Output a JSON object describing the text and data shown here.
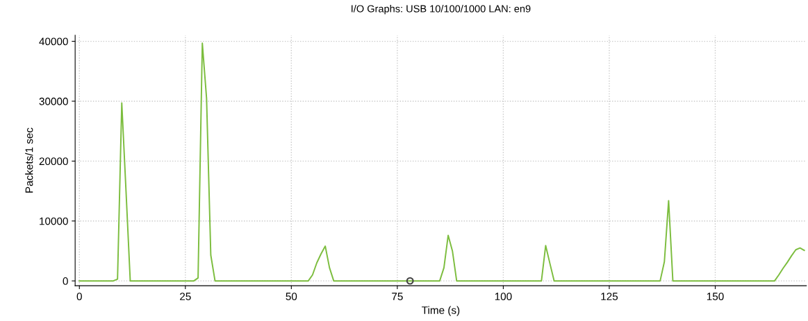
{
  "chart_data": {
    "type": "line",
    "title": "I/O Graphs: USB 10/100/1000 LAN: en9",
    "xlabel": "Time (s)",
    "ylabel": "Packets/1 sec",
    "xlim": [
      -1,
      171.5
    ],
    "ylim": [
      -800,
      41000
    ],
    "xticks": [
      0,
      25,
      50,
      75,
      100,
      125,
      150
    ],
    "yticks": [
      0,
      10000,
      20000,
      30000,
      40000
    ],
    "grid": true,
    "marker": "none",
    "line_style": "solid",
    "series": [
      {
        "color": "#7cbd3e",
        "x": [
          0,
          8,
          9,
          10,
          11,
          12,
          27,
          28,
          29,
          30,
          31,
          32,
          54,
          55,
          56,
          57,
          58,
          59,
          60,
          85,
          86,
          87,
          88,
          89,
          109,
          110,
          111,
          112,
          137,
          138,
          139,
          140,
          164,
          165,
          166,
          167,
          168,
          169,
          170,
          171
        ],
        "values": [
          0,
          0,
          300,
          29700,
          15000,
          0,
          0,
          500,
          39700,
          30500,
          4300,
          0,
          0,
          1000,
          3000,
          4500,
          5800,
          2200,
          0,
          0,
          2200,
          7600,
          5000,
          0,
          0,
          5900,
          2900,
          0,
          0,
          3200,
          13400,
          0,
          0,
          1000,
          2100,
          3100,
          4200,
          5200,
          5500,
          5100
        ]
      },
      {
        "type": "scatter",
        "marker": "circle",
        "color": "#444444",
        "x": [
          78
        ],
        "values": [
          0
        ]
      }
    ]
  }
}
